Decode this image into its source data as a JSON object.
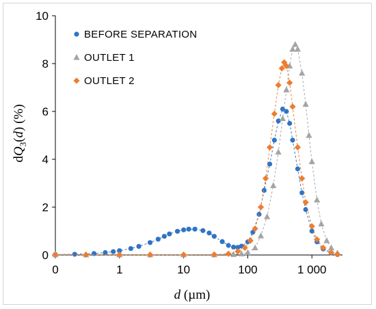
{
  "chart_data": {
    "type": "scatter",
    "x_scale": "log",
    "xlabel": {
      "italic": "d",
      "rest": " (µm)"
    },
    "ylabel": {
      "prefix": "d",
      "italic": "Q",
      "sub": "3",
      "rest": "(",
      "italic2": "d",
      "end": ") (%)"
    },
    "x_ticks": [
      "0",
      "1",
      "10",
      "100",
      "1 000"
    ],
    "y_ticks": [
      "0",
      "2",
      "4",
      "6",
      "8",
      "10"
    ],
    "xlim": [
      0.1,
      3000
    ],
    "ylim": [
      0,
      10
    ],
    "grid": false,
    "legend_position": "top-left",
    "series": [
      {
        "name": "BEFORE SEPARATION",
        "color": "#2e74c6",
        "marker": "circle",
        "points": [
          [
            0.1,
            0.02
          ],
          [
            0.2,
            0.03
          ],
          [
            0.4,
            0.06
          ],
          [
            0.6,
            0.1
          ],
          [
            0.8,
            0.14
          ],
          [
            1.0,
            0.18
          ],
          [
            1.5,
            0.27
          ],
          [
            2.0,
            0.36
          ],
          [
            3.0,
            0.52
          ],
          [
            4.0,
            0.66
          ],
          [
            5.0,
            0.78
          ],
          [
            6.0,
            0.88
          ],
          [
            8.0,
            0.99
          ],
          [
            10.0,
            1.05
          ],
          [
            12.0,
            1.08
          ],
          [
            15.0,
            1.08
          ],
          [
            20.0,
            1.02
          ],
          [
            25.0,
            0.92
          ],
          [
            30.0,
            0.78
          ],
          [
            40.0,
            0.56
          ],
          [
            50.0,
            0.4
          ],
          [
            60.0,
            0.33
          ],
          [
            70.0,
            0.32
          ],
          [
            80.0,
            0.37
          ],
          [
            100.0,
            0.55
          ],
          [
            120.0,
            0.95
          ],
          [
            150.0,
            1.7
          ],
          [
            180.0,
            2.7
          ],
          [
            220.0,
            3.8
          ],
          [
            260.0,
            4.8
          ],
          [
            300.0,
            5.6
          ],
          [
            350.0,
            6.1
          ],
          [
            400.0,
            6.0
          ],
          [
            450.0,
            5.5
          ],
          [
            500.0,
            4.8
          ],
          [
            600.0,
            3.6
          ],
          [
            700.0,
            2.6
          ],
          [
            800.0,
            1.9
          ],
          [
            1000.0,
            1.0
          ],
          [
            1200.0,
            0.55
          ],
          [
            1500.0,
            0.25
          ],
          [
            2000.0,
            0.08
          ],
          [
            2500.0,
            0.02
          ]
        ]
      },
      {
        "name": "OUTLET 1",
        "color": "#a5a5a5",
        "marker": "triangle",
        "points": [
          [
            0.1,
            0.01
          ],
          [
            0.3,
            0.01
          ],
          [
            1.0,
            0.01
          ],
          [
            3.0,
            0.01
          ],
          [
            10.0,
            0.01
          ],
          [
            30.0,
            0.01
          ],
          [
            60.0,
            0.02
          ],
          [
            80.0,
            0.05
          ],
          [
            100.0,
            0.1
          ],
          [
            130.0,
            0.3
          ],
          [
            160.0,
            0.8
          ],
          [
            200.0,
            1.6
          ],
          [
            250.0,
            2.9
          ],
          [
            300.0,
            4.3
          ],
          [
            350.0,
            5.7
          ],
          [
            400.0,
            6.9
          ],
          [
            450.0,
            7.9
          ],
          [
            500.0,
            8.6
          ],
          [
            550.0,
            8.8
          ],
          [
            600.0,
            8.6
          ],
          [
            700.0,
            7.6
          ],
          [
            800.0,
            6.3
          ],
          [
            900.0,
            5.0
          ],
          [
            1000.0,
            3.9
          ],
          [
            1200.0,
            2.3
          ],
          [
            1400.0,
            1.3
          ],
          [
            1700.0,
            0.6
          ],
          [
            2000.0,
            0.3
          ],
          [
            2500.0,
            0.08
          ]
        ]
      },
      {
        "name": "OUTLET 2",
        "color": "#ed7d31",
        "marker": "diamond",
        "points": [
          [
            0.1,
            0.01
          ],
          [
            0.3,
            0.01
          ],
          [
            1.0,
            0.01
          ],
          [
            3.0,
            0.01
          ],
          [
            10.0,
            0.01
          ],
          [
            30.0,
            0.02
          ],
          [
            50.0,
            0.05
          ],
          [
            70.0,
            0.15
          ],
          [
            90.0,
            0.3
          ],
          [
            110.0,
            0.6
          ],
          [
            130.0,
            1.1
          ],
          [
            160.0,
            2.0
          ],
          [
            190.0,
            3.2
          ],
          [
            220.0,
            4.5
          ],
          [
            260.0,
            5.9
          ],
          [
            300.0,
            7.1
          ],
          [
            340.0,
            7.8
          ],
          [
            370.0,
            8.05
          ],
          [
            400.0,
            7.9
          ],
          [
            450.0,
            7.2
          ],
          [
            500.0,
            6.2
          ],
          [
            600.0,
            4.5
          ],
          [
            700.0,
            3.2
          ],
          [
            800.0,
            2.2
          ],
          [
            1000.0,
            1.2
          ],
          [
            1200.0,
            0.65
          ],
          [
            1500.0,
            0.3
          ],
          [
            2000.0,
            0.1
          ],
          [
            2500.0,
            0.03
          ]
        ]
      }
    ]
  }
}
